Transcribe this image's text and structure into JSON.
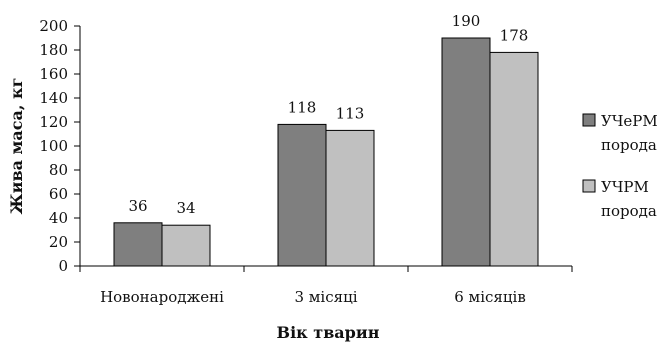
{
  "chart_data": {
    "type": "bar",
    "categories": [
      "Новонароджені",
      "3 місяці",
      "6 місяців"
    ],
    "series": [
      {
        "name": "УЧеРМ порода",
        "values": [
          36,
          118,
          190
        ],
        "color": "#7f7f7f"
      },
      {
        "name": "УЧРМ порода",
        "values": [
          34,
          113,
          178
        ],
        "color": "#c0c0c0"
      }
    ],
    "data_labels": [
      [
        "36",
        "118",
        "190"
      ],
      [
        "34",
        "113",
        "178"
      ]
    ],
    "title": "",
    "xlabel": "Вік тварин",
    "ylabel": "Жива маса, кг",
    "ylim": [
      0,
      200
    ],
    "yticks": [
      0,
      20,
      40,
      60,
      80,
      100,
      120,
      140,
      160,
      180,
      200
    ],
    "ytick_labels": [
      "0",
      "20",
      "40",
      "60",
      "80",
      "100",
      "120",
      "140",
      "160",
      "180",
      "200"
    ],
    "legend": {
      "placement": "right",
      "items": [
        {
          "line1": "УЧеРМ",
          "line2": "порода"
        },
        {
          "line1": "УЧРМ",
          "line2": "порода"
        }
      ]
    },
    "grid": false
  }
}
